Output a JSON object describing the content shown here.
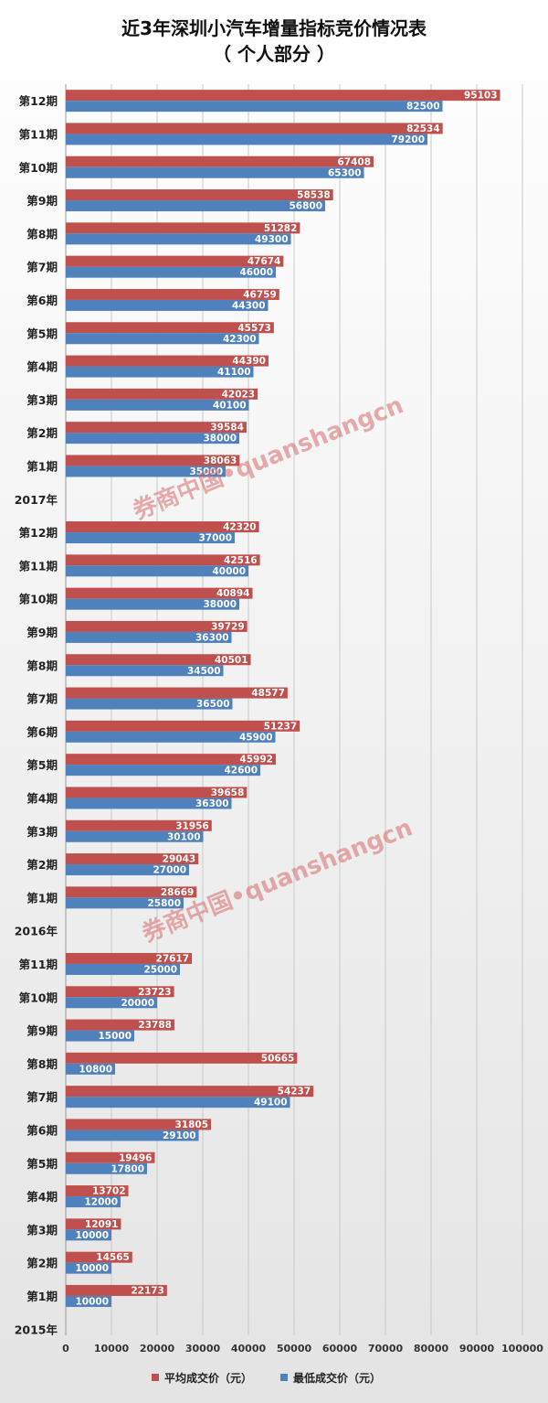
{
  "chart_data": {
    "type": "bar",
    "orientation": "horizontal",
    "title": "近3年深圳小汽车增量指标竞价情况表",
    "subtitle": "（ 个人部分 ）",
    "xlim": [
      0,
      100000
    ],
    "x_ticks": [
      0,
      10000,
      20000,
      30000,
      40000,
      50000,
      60000,
      70000,
      80000,
      90000,
      100000
    ],
    "grid": true,
    "legend_position": "bottom",
    "watermark": "券商中国•quanshangcn",
    "categories": [
      "第12期",
      "第11期",
      "第10期",
      "第9期",
      "第8期",
      "第7期",
      "第6期",
      "第5期",
      "第4期",
      "第3期",
      "第2期",
      "第1期",
      "2017年",
      "第12期",
      "第11期",
      "第10期",
      "第9期",
      "第8期",
      "第7期",
      "第6期",
      "第5期",
      "第4期",
      "第3期",
      "第2期",
      "第1期",
      "2016年",
      "第11期",
      "第10期",
      "第9期",
      "第8期",
      "第7期",
      "第6期",
      "第5期",
      "第4期",
      "第3期",
      "第2期",
      "第1期",
      "2015年"
    ],
    "series": [
      {
        "name": "平均成交价（元）",
        "color": "#c0504d",
        "values": [
          95103,
          82534,
          67408,
          58538,
          51282,
          47674,
          46759,
          45573,
          44390,
          42023,
          39584,
          38063,
          null,
          42320,
          42516,
          40894,
          39729,
          40501,
          48577,
          51237,
          45992,
          39658,
          31956,
          29043,
          28669,
          null,
          27617,
          23723,
          23788,
          50665,
          54237,
          31805,
          19496,
          13702,
          12091,
          14565,
          22173,
          null
        ]
      },
      {
        "name": "最低成交价（元）",
        "color": "#4f81bd",
        "values": [
          82500,
          79200,
          65300,
          56800,
          49300,
          46000,
          44300,
          42300,
          41100,
          40100,
          38000,
          35000,
          null,
          37000,
          40000,
          38000,
          36300,
          34500,
          36500,
          45900,
          42600,
          36300,
          30100,
          27000,
          25800,
          null,
          25000,
          20000,
          15000,
          10800,
          49100,
          29100,
          17800,
          12000,
          10000,
          10000,
          10000,
          null
        ]
      }
    ]
  }
}
